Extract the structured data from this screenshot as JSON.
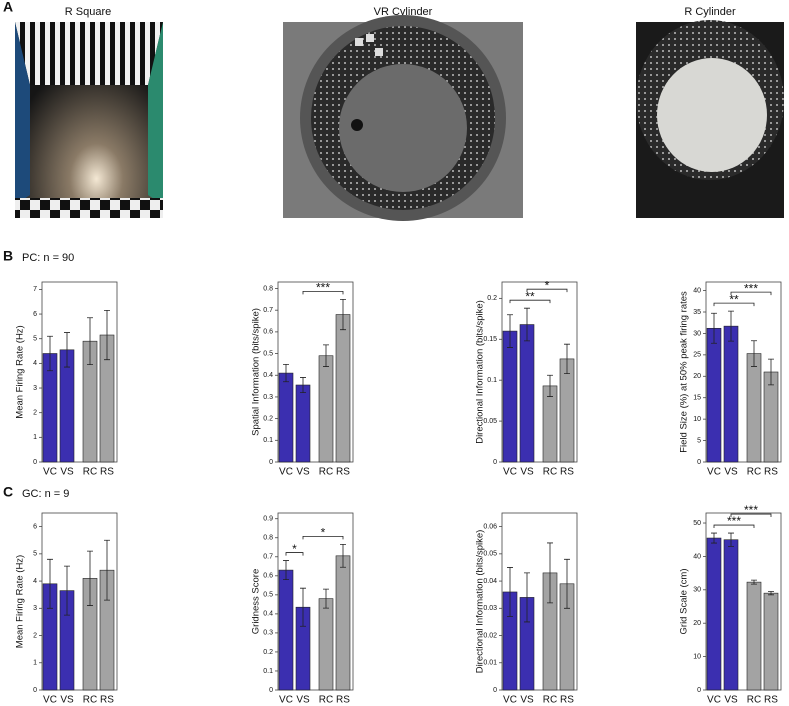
{
  "panel_labels": [
    "A",
    "B",
    "C"
  ],
  "panel_a": {
    "images": [
      {
        "title": "R Square"
      },
      {
        "title": "VR Cylinder"
      },
      {
        "title": "R Cylinder"
      }
    ]
  },
  "row_titles": [
    "PC: n = 90",
    "GC: n = 9"
  ],
  "chart_data": [
    {
      "type": "bar",
      "ylabel": "Mean Firing Rate (Hz)",
      "categories": [
        "VC",
        "VS",
        "RC",
        "RS"
      ],
      "colors": [
        "#3b2fb0",
        "#3b2fb0",
        "#a3a3a3",
        "#a3a3a3"
      ],
      "values": [
        4.4,
        4.55,
        4.9,
        5.15
      ],
      "errors": [
        0.7,
        0.7,
        0.95,
        1.0
      ],
      "ylim": [
        0,
        7.3
      ],
      "yticks": [
        0,
        1,
        2,
        3,
        4,
        5,
        6,
        7
      ],
      "significance": []
    },
    {
      "type": "bar",
      "ylabel": "Spatial Information (bits/spike)",
      "categories": [
        "VC",
        "VS",
        "RC",
        "RS"
      ],
      "colors": [
        "#3b2fb0",
        "#3b2fb0",
        "#a3a3a3",
        "#a3a3a3"
      ],
      "values": [
        0.41,
        0.355,
        0.49,
        0.68
      ],
      "errors": [
        0.04,
        0.035,
        0.05,
        0.07
      ],
      "ylim": [
        0,
        0.83
      ],
      "yticks": [
        0,
        0.1,
        0.2,
        0.3,
        0.4,
        0.5,
        0.6,
        0.7,
        0.8
      ],
      "significance": [
        {
          "between": [
            "VS",
            "RS"
          ],
          "label": "***"
        }
      ]
    },
    {
      "type": "bar",
      "ylabel": "Directional Information (bits/spike)",
      "categories": [
        "VC",
        "VS",
        "RC",
        "RS"
      ],
      "colors": [
        "#3b2fb0",
        "#3b2fb0",
        "#a3a3a3",
        "#a3a3a3"
      ],
      "values": [
        0.16,
        0.168,
        0.093,
        0.126
      ],
      "errors": [
        0.02,
        0.02,
        0.013,
        0.018
      ],
      "ylim": [
        0,
        0.22
      ],
      "yticks": [
        0,
        0.05,
        0.1,
        0.15,
        0.2
      ],
      "significance": [
        {
          "between": [
            "VC",
            "RC"
          ],
          "label": "**"
        },
        {
          "between": [
            "VS",
            "RS"
          ],
          "label": "*"
        }
      ]
    },
    {
      "type": "bar",
      "ylabel": "Field Size (%) at 50% peak firing rates",
      "categories": [
        "VC",
        "VS",
        "RC",
        "RS"
      ],
      "colors": [
        "#3b2fb0",
        "#3b2fb0",
        "#a3a3a3",
        "#a3a3a3"
      ],
      "values": [
        31.2,
        31.7,
        25.3,
        21
      ],
      "errors": [
        3.5,
        3.5,
        3,
        3
      ],
      "ylim": [
        0,
        42
      ],
      "yticks": [
        0,
        5,
        10,
        15,
        20,
        25,
        30,
        35,
        40
      ],
      "significance": [
        {
          "between": [
            "VC",
            "RC"
          ],
          "label": "**"
        },
        {
          "between": [
            "VS",
            "RS"
          ],
          "label": "***"
        }
      ]
    },
    {
      "type": "bar",
      "ylabel": "Mean Firing Rate (Hz)",
      "categories": [
        "VC",
        "VS",
        "RC",
        "RS"
      ],
      "colors": [
        "#3b2fb0",
        "#3b2fb0",
        "#a3a3a3",
        "#a3a3a3"
      ],
      "values": [
        3.9,
        3.65,
        4.1,
        4.4
      ],
      "errors": [
        0.9,
        0.9,
        1.0,
        1.1
      ],
      "ylim": [
        0,
        6.5
      ],
      "yticks": [
        0,
        1,
        2,
        3,
        4,
        5,
        6
      ],
      "significance": []
    },
    {
      "type": "bar",
      "ylabel": "Gridness Score",
      "categories": [
        "VC",
        "VS",
        "RC",
        "RS"
      ],
      "colors": [
        "#3b2fb0",
        "#3b2fb0",
        "#a3a3a3",
        "#a3a3a3"
      ],
      "values": [
        0.63,
        0.435,
        0.48,
        0.705
      ],
      "errors": [
        0.05,
        0.1,
        0.05,
        0.06
      ],
      "ylim": [
        0,
        0.93
      ],
      "yticks": [
        0,
        0.1,
        0.2,
        0.3,
        0.4,
        0.5,
        0.6,
        0.7,
        0.8,
        0.9
      ],
      "significance": [
        {
          "between": [
            "VC",
            "VS"
          ],
          "label": "*"
        },
        {
          "between": [
            "VS",
            "RS"
          ],
          "label": "*"
        }
      ]
    },
    {
      "type": "bar",
      "ylabel": "Directional Information (bits/spike)",
      "categories": [
        "VC",
        "VS",
        "RC",
        "RS"
      ],
      "colors": [
        "#3b2fb0",
        "#3b2fb0",
        "#a3a3a3",
        "#a3a3a3"
      ],
      "values": [
        0.036,
        0.034,
        0.043,
        0.039
      ],
      "errors": [
        0.009,
        0.009,
        0.011,
        0.009
      ],
      "ylim": [
        0,
        0.065
      ],
      "yticks": [
        0,
        0.01,
        0.02,
        0.03,
        0.04,
        0.05,
        0.06
      ],
      "significance": []
    },
    {
      "type": "bar",
      "ylabel": "Grid Scale (cm)",
      "categories": [
        "VC",
        "VS",
        "RC",
        "RS"
      ],
      "colors": [
        "#3b2fb0",
        "#3b2fb0",
        "#a3a3a3",
        "#a3a3a3"
      ],
      "values": [
        45.5,
        45,
        32.3,
        29
      ],
      "errors": [
        1.5,
        2,
        0.6,
        0.5
      ],
      "ylim": [
        0,
        53
      ],
      "yticks": [
        0,
        10,
        20,
        30,
        40,
        50
      ],
      "significance": [
        {
          "between": [
            "VC",
            "RC"
          ],
          "label": "***"
        },
        {
          "between": [
            "VS",
            "RS"
          ],
          "label": "***"
        }
      ]
    }
  ]
}
